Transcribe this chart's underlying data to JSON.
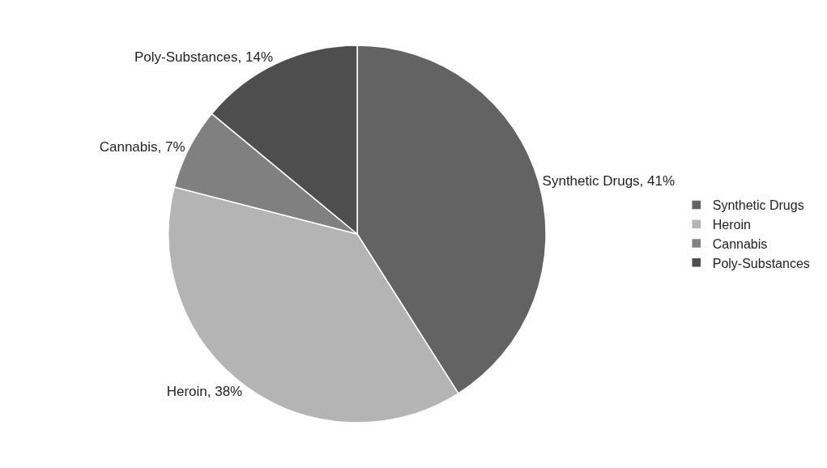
{
  "chart_data": {
    "type": "pie",
    "categories": [
      "Synthetic Drugs",
      "Heroin",
      "Cannabis",
      "Poly-Substances"
    ],
    "values": [
      41,
      38,
      7,
      14
    ],
    "value_labels": [
      "Synthetic Drugs, 41%",
      "Heroin, 38%",
      "Cannabis, 7%",
      "Poly-Substances, 14%"
    ],
    "colors": [
      "#636363",
      "#b4b4b4",
      "#808080",
      "#4e4e4e"
    ],
    "legend": "right"
  }
}
